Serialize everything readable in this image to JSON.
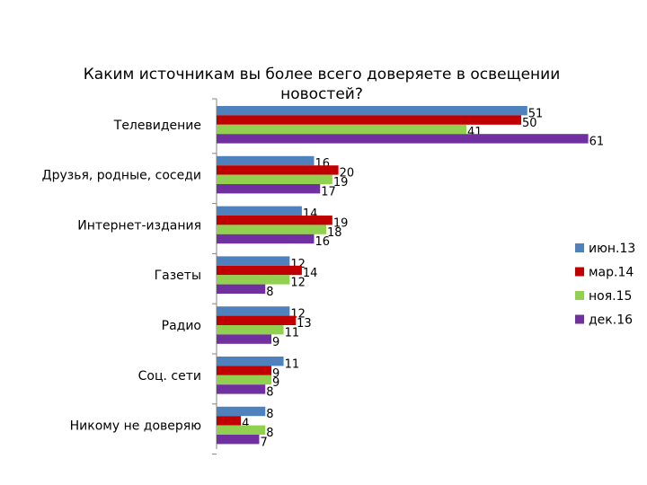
{
  "chart_data": {
    "type": "bar",
    "orientation": "horizontal",
    "title_lines": [
      "Каким источникам вы более всего доверяете в освещении",
      "новостей?"
    ],
    "categories": [
      "Телевидение",
      "Друзья, родные, соседи",
      "Интернет-издания",
      "Газеты",
      "Радио",
      "Соц. сети",
      "Никому не доверяю"
    ],
    "series": [
      {
        "name": "июн.13",
        "color": "#4f81bd",
        "values": [
          51,
          16,
          14,
          12,
          12,
          11,
          8
        ]
      },
      {
        "name": "мар.14",
        "color": "#c00000",
        "values": [
          50,
          20,
          19,
          14,
          13,
          9,
          4
        ]
      },
      {
        "name": "ноя.15",
        "color": "#92d050",
        "values": [
          41,
          19,
          18,
          12,
          11,
          9,
          8
        ]
      },
      {
        "name": "дек.16",
        "color": "#7030a0",
        "values": [
          61,
          17,
          16,
          8,
          9,
          8,
          7
        ]
      }
    ],
    "xlim": [
      0,
      61
    ],
    "grid": false,
    "legend_position": "right"
  }
}
